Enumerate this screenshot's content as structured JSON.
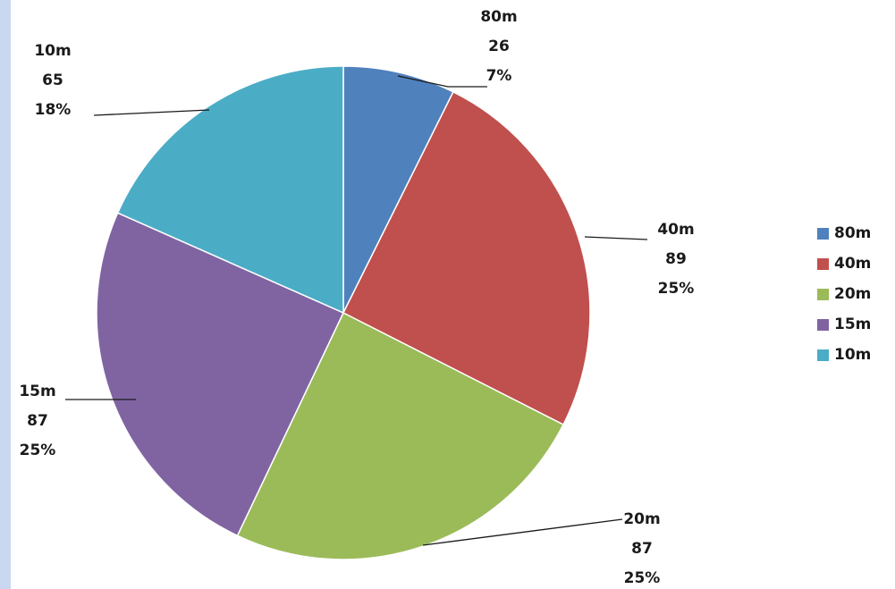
{
  "chart_data": {
    "type": "pie",
    "title": "",
    "legend_position": "right",
    "slices": [
      {
        "label": "80m",
        "value": 26,
        "percent": "7%",
        "color": "#4f81bd"
      },
      {
        "label": "40m",
        "value": 89,
        "percent": "25%",
        "color": "#c0504d"
      },
      {
        "label": "20m",
        "value": 87,
        "percent": "25%",
        "color": "#9bbb59"
      },
      {
        "label": "15m",
        "value": 87,
        "percent": "25%",
        "color": "#8064a2"
      },
      {
        "label": "10m",
        "value": 65,
        "percent": "18%",
        "color": "#4bacc6"
      }
    ]
  }
}
